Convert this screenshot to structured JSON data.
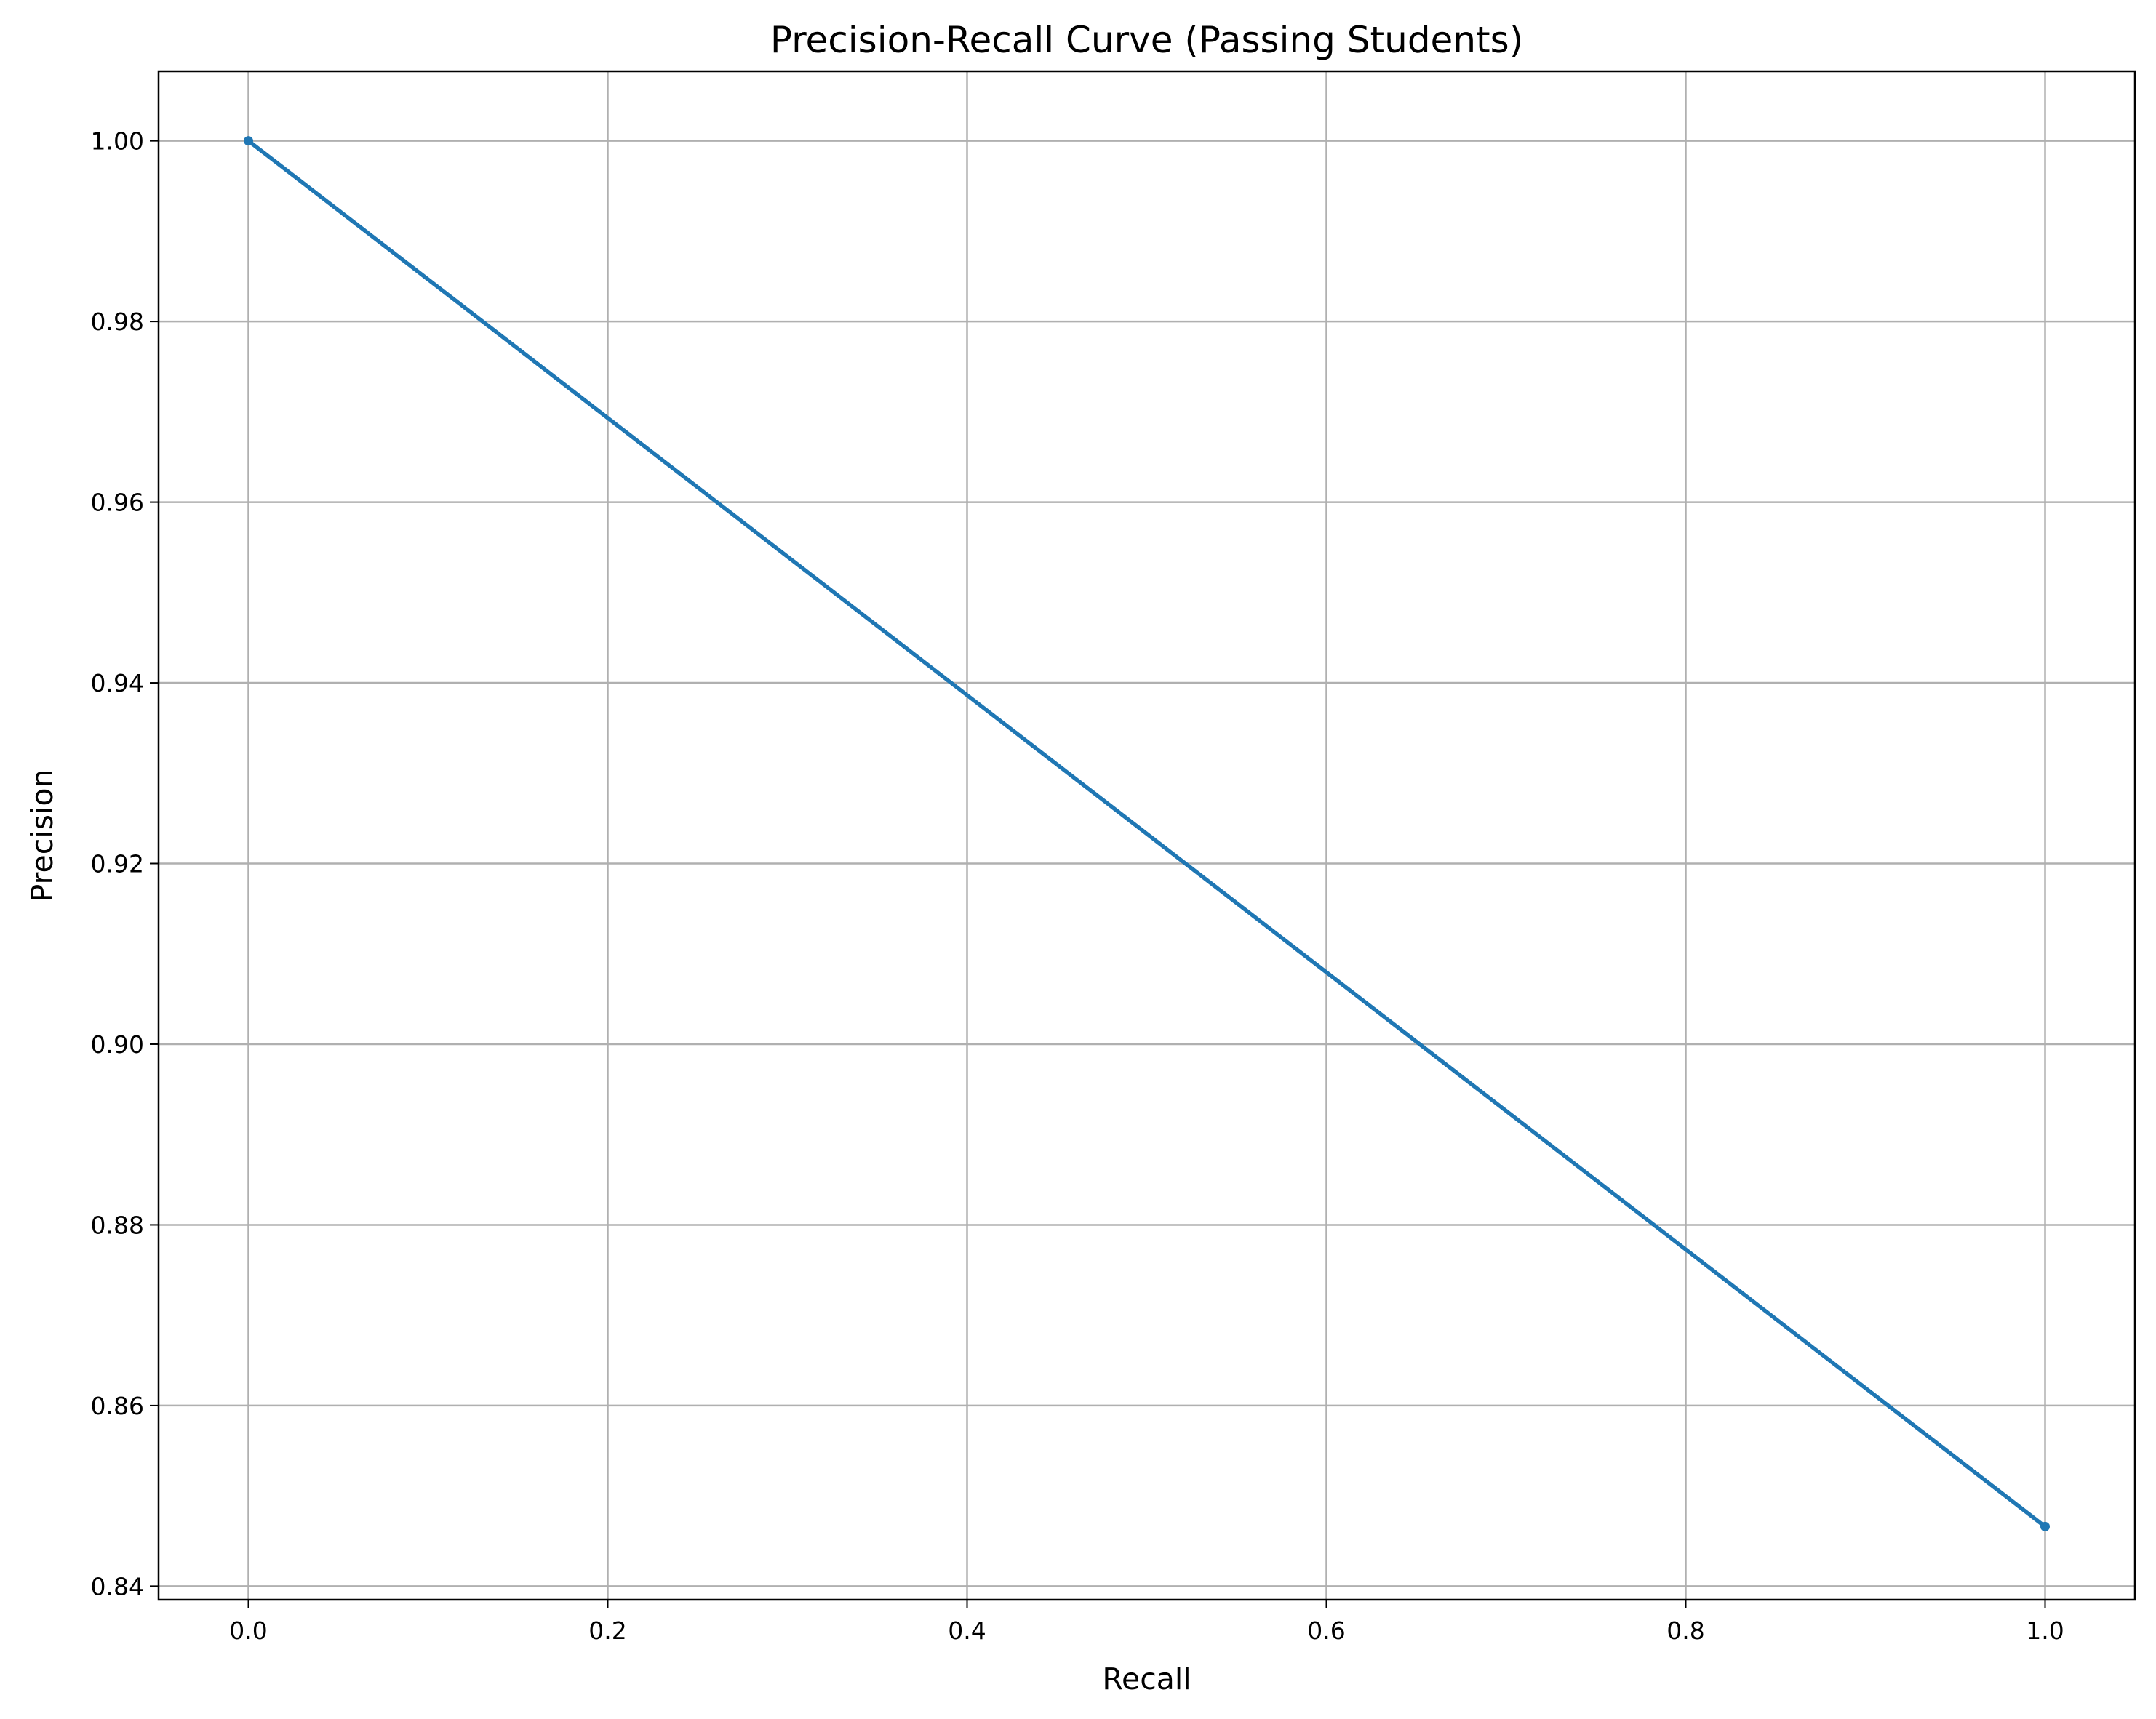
{
  "chart_data": {
    "type": "line",
    "title": "Precision-Recall Curve (Passing Students)",
    "xlabel": "Recall",
    "ylabel": "Precision",
    "xlim": [
      -0.05,
      1.05
    ],
    "ylim": [
      0.8385,
      1.0077
    ],
    "xticks": [
      0.0,
      0.2,
      0.4,
      0.6,
      0.8,
      1.0
    ],
    "xtick_labels": [
      "0.0",
      "0.2",
      "0.4",
      "0.6",
      "0.8",
      "1.0"
    ],
    "yticks": [
      0.84,
      0.86,
      0.88,
      0.9,
      0.92,
      0.94,
      0.96,
      0.98,
      1.0
    ],
    "ytick_labels": [
      "0.84",
      "0.86",
      "0.88",
      "0.90",
      "0.92",
      "0.94",
      "0.96",
      "0.98",
      "1.00"
    ],
    "grid": true,
    "series": [
      {
        "x": [
          0.0,
          1.0
        ],
        "y": [
          1.0,
          0.8466
        ],
        "color": "#1f77b4",
        "marker": "point"
      }
    ]
  }
}
